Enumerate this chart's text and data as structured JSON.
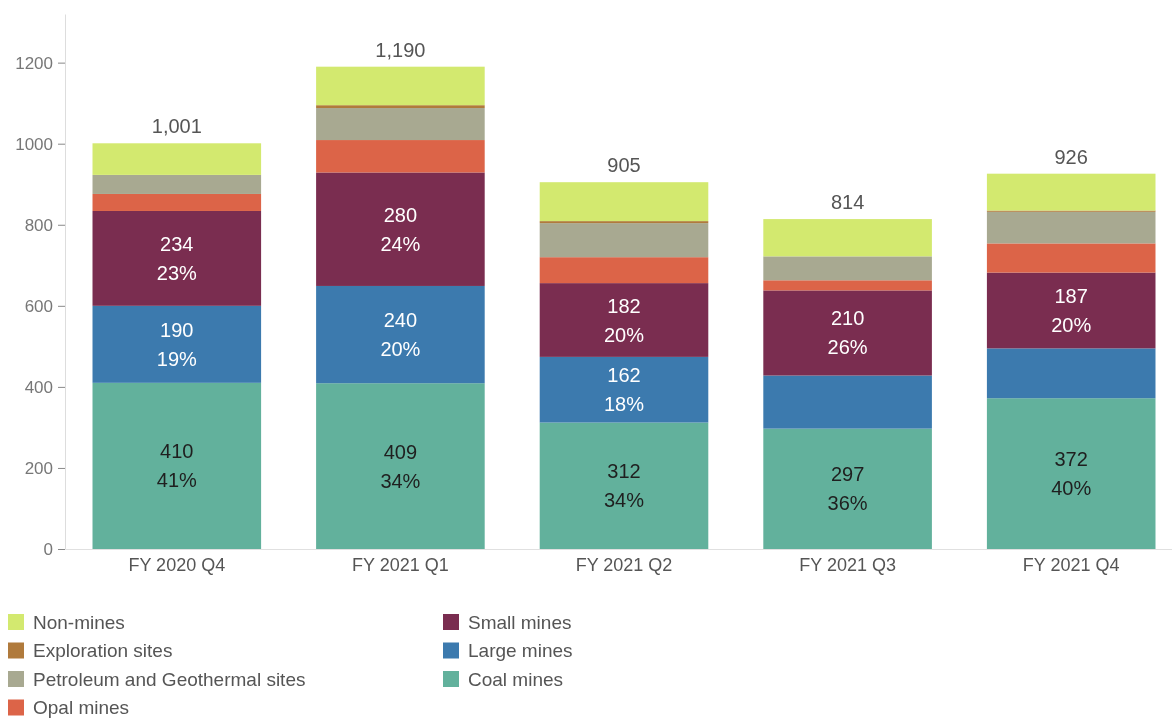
{
  "chart_data": {
    "type": "bar",
    "stacked": true,
    "legend": "bottom",
    "categories": [
      "FY 2020 Q4",
      "FY 2021 Q1",
      "FY 2021 Q2",
      "FY 2021 Q3",
      "FY 2021 Q4"
    ],
    "ylim": [
      0,
      1320
    ],
    "yticks": [
      0,
      200,
      400,
      600,
      800,
      1000,
      1200
    ],
    "totals": [
      "1,001",
      "1,190",
      "905",
      "814",
      "926"
    ],
    "series": [
      {
        "name": "Coal mines",
        "color": "#62b19c",
        "values": [
          410,
          409,
          312,
          297,
          372
        ],
        "value_labels": [
          "410\n41%",
          "409\n34%",
          "312\n34%",
          "297\n36%",
          "372\n40%"
        ]
      },
      {
        "name": "Large mines",
        "color": "#3c7aae",
        "values": [
          190,
          240,
          162,
          131,
          123
        ],
        "value_labels": [
          "190\n19%",
          "240\n20%",
          "162\n18%",
          null,
          null
        ]
      },
      {
        "name": "Small mines",
        "color": "#7a2d50",
        "values": [
          234,
          280,
          182,
          210,
          187
        ],
        "value_labels": [
          "234\n23%",
          "280\n24%",
          "182\n20%",
          "210\n26%",
          "187\n20%"
        ]
      },
      {
        "name": "Opal mines",
        "color": "#dc6448",
        "values": [
          42,
          80,
          64,
          25,
          72
        ]
      },
      {
        "name": "Petroleum and Geothermal sites",
        "color": "#a8a991",
        "values": [
          47,
          79,
          84,
          59,
          78
        ]
      },
      {
        "name": "Exploration sites",
        "color": "#b07a3c",
        "values": [
          null,
          7,
          5,
          null,
          3
        ]
      },
      {
        "name": "Non-mines",
        "color": "#d3e96f",
        "values": [
          78,
          95,
          96,
          92,
          91
        ]
      }
    ]
  }
}
